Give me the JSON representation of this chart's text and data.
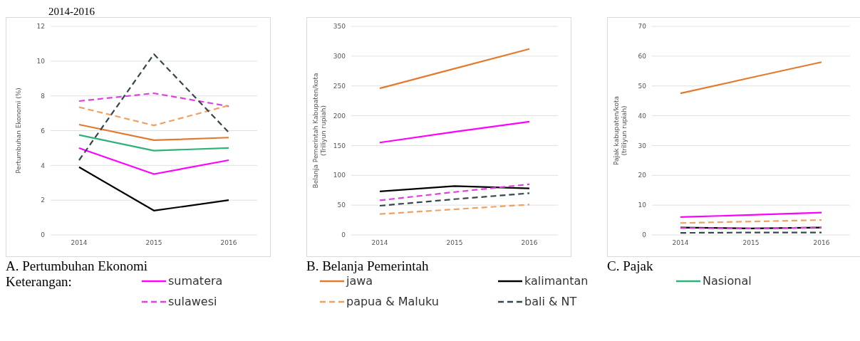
{
  "chart_data": [
    {
      "type": "line",
      "title": "A. Pertumbuhan Ekonomi",
      "annotations": [
        "2014-2016"
      ],
      "ylabel": "Pertumbuhan Ekonomi (%)",
      "categories": [
        "2014",
        "2015",
        "2016"
      ],
      "ylim": [
        0,
        12
      ],
      "yticks": [
        0,
        2,
        4,
        6,
        8,
        10,
        12
      ],
      "grid": "y",
      "legend": "bottom",
      "legend_title": "Keterangan:",
      "marker": "none",
      "series": [
        {
          "name": "sumatera",
          "color": "#ff00ff",
          "line_style": "solid",
          "values": [
            5.0,
            3.5,
            4.3
          ]
        },
        {
          "name": "jawa",
          "color": "#e07b30",
          "line_style": "solid",
          "values": [
            6.35,
            5.45,
            5.6
          ]
        },
        {
          "name": "kalimantan",
          "color": "#000000",
          "line_style": "solid",
          "values": [
            3.9,
            1.4,
            2.0
          ]
        },
        {
          "name": "Nasional",
          "color": "#2fb27a",
          "line_style": "solid",
          "values": [
            5.75,
            4.85,
            5.0
          ]
        },
        {
          "name": "sulawesi",
          "color": "#e040e0",
          "line_style": "dashed",
          "values": [
            7.7,
            8.15,
            7.4
          ]
        },
        {
          "name": "papua & Maluku",
          "color": "#f0a060",
          "line_style": "dashed",
          "values": [
            7.35,
            6.3,
            7.45
          ]
        },
        {
          "name": "bali & NT",
          "color": "#37474f",
          "line_style": "dashed",
          "values": [
            4.3,
            10.4,
            5.9
          ]
        }
      ]
    },
    {
      "type": "line",
      "title": "B. Belanja Pemerintah",
      "ylabel": "Belanja Pemerintah Kabupaten/kota\n(Triliyun rupiah)",
      "categories": [
        "2014",
        "2015",
        "2016"
      ],
      "ylim": [
        0,
        350
      ],
      "yticks": [
        0,
        50,
        100,
        150,
        200,
        250,
        300,
        350
      ],
      "grid": "y",
      "marker": "none",
      "series": [
        {
          "color": "#ff00ff",
          "line_style": "solid",
          "values": [
            155,
            173,
            190
          ]
        },
        {
          "color": "#e07b30",
          "line_style": "solid",
          "values": [
            246,
            279,
            312
          ]
        },
        {
          "color": "#000000",
          "line_style": "solid",
          "values": [
            73,
            82,
            78
          ]
        },
        {
          "color": "#e040e0",
          "line_style": "dashed",
          "values": [
            58,
            72,
            85
          ]
        },
        {
          "color": "#f0a060",
          "line_style": "dashed",
          "values": [
            35,
            43,
            51
          ]
        },
        {
          "color": "#37474f",
          "line_style": "dashed",
          "values": [
            49,
            60,
            70
          ]
        }
      ]
    },
    {
      "type": "line",
      "title": "C. Pajak",
      "ylabel": "Pajak kabupaten/kota\n(triliyun rupiah)",
      "categories": [
        "2014",
        "2015",
        "2016"
      ],
      "ylim": [
        0,
        70
      ],
      "yticks": [
        0,
        10,
        20,
        30,
        40,
        50,
        60,
        70
      ],
      "grid": "y",
      "marker": "none",
      "series": [
        {
          "color": "#ff00ff",
          "line_style": "solid",
          "values": [
            6,
            6.7,
            7.5
          ]
        },
        {
          "color": "#e07b30",
          "line_style": "solid",
          "values": [
            47.5,
            52.8,
            58
          ]
        },
        {
          "color": "#000000",
          "line_style": "solid",
          "values": [
            2.5,
            2.2,
            2.5
          ]
        },
        {
          "color": "#e040e0",
          "line_style": "dashed",
          "values": [
            2.3,
            2.2,
            2.5
          ]
        },
        {
          "color": "#f0a060",
          "line_style": "dashed",
          "values": [
            4,
            4.5,
            5
          ]
        },
        {
          "color": "#37474f",
          "line_style": "dashed",
          "values": [
            0.7,
            0.8,
            0.8
          ]
        }
      ]
    }
  ]
}
